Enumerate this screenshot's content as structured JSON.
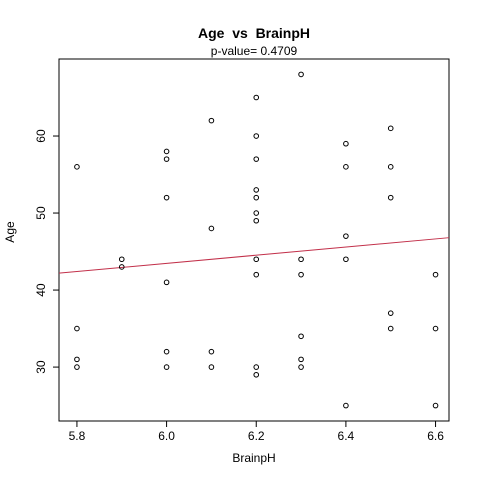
{
  "chart_data": {
    "type": "scatter",
    "title": "Age  vs  BrainpH",
    "subtitle": "p-value= 0.4709",
    "xlabel": "BrainpH",
    "ylabel": "Age",
    "xlim": [
      5.76,
      6.63
    ],
    "ylim": [
      23,
      70
    ],
    "x_ticks": [
      "5.8",
      "6.0",
      "6.2",
      "6.4",
      "6.6"
    ],
    "y_ticks": [
      "30",
      "40",
      "50",
      "60"
    ],
    "grid": false,
    "points": [
      {
        "x": 5.8,
        "y": 56
      },
      {
        "x": 5.8,
        "y": 35
      },
      {
        "x": 5.8,
        "y": 31
      },
      {
        "x": 5.8,
        "y": 30
      },
      {
        "x": 5.9,
        "y": 44
      },
      {
        "x": 5.9,
        "y": 43
      },
      {
        "x": 6.0,
        "y": 58
      },
      {
        "x": 6.0,
        "y": 57
      },
      {
        "x": 6.0,
        "y": 52
      },
      {
        "x": 6.0,
        "y": 41
      },
      {
        "x": 6.0,
        "y": 32
      },
      {
        "x": 6.0,
        "y": 30
      },
      {
        "x": 6.1,
        "y": 62
      },
      {
        "x": 6.1,
        "y": 48
      },
      {
        "x": 6.1,
        "y": 32
      },
      {
        "x": 6.1,
        "y": 30
      },
      {
        "x": 6.2,
        "y": 65
      },
      {
        "x": 6.2,
        "y": 60
      },
      {
        "x": 6.2,
        "y": 57
      },
      {
        "x": 6.2,
        "y": 53
      },
      {
        "x": 6.2,
        "y": 52
      },
      {
        "x": 6.2,
        "y": 50
      },
      {
        "x": 6.2,
        "y": 49
      },
      {
        "x": 6.2,
        "y": 44
      },
      {
        "x": 6.2,
        "y": 42
      },
      {
        "x": 6.2,
        "y": 30
      },
      {
        "x": 6.2,
        "y": 29
      },
      {
        "x": 6.3,
        "y": 68
      },
      {
        "x": 6.3,
        "y": 44
      },
      {
        "x": 6.3,
        "y": 42
      },
      {
        "x": 6.3,
        "y": 34
      },
      {
        "x": 6.3,
        "y": 31
      },
      {
        "x": 6.3,
        "y": 30
      },
      {
        "x": 6.4,
        "y": 59
      },
      {
        "x": 6.4,
        "y": 56
      },
      {
        "x": 6.4,
        "y": 47
      },
      {
        "x": 6.4,
        "y": 44
      },
      {
        "x": 6.4,
        "y": 25
      },
      {
        "x": 6.5,
        "y": 61
      },
      {
        "x": 6.5,
        "y": 56
      },
      {
        "x": 6.5,
        "y": 52
      },
      {
        "x": 6.5,
        "y": 37
      },
      {
        "x": 6.5,
        "y": 35
      },
      {
        "x": 6.6,
        "y": 42
      },
      {
        "x": 6.6,
        "y": 35
      },
      {
        "x": 6.6,
        "y": 25
      }
    ],
    "fit_line": {
      "color": "#c2304a",
      "x": [
        5.76,
        6.63
      ],
      "y": [
        42.2,
        46.8
      ]
    },
    "point_color": "#000000"
  }
}
